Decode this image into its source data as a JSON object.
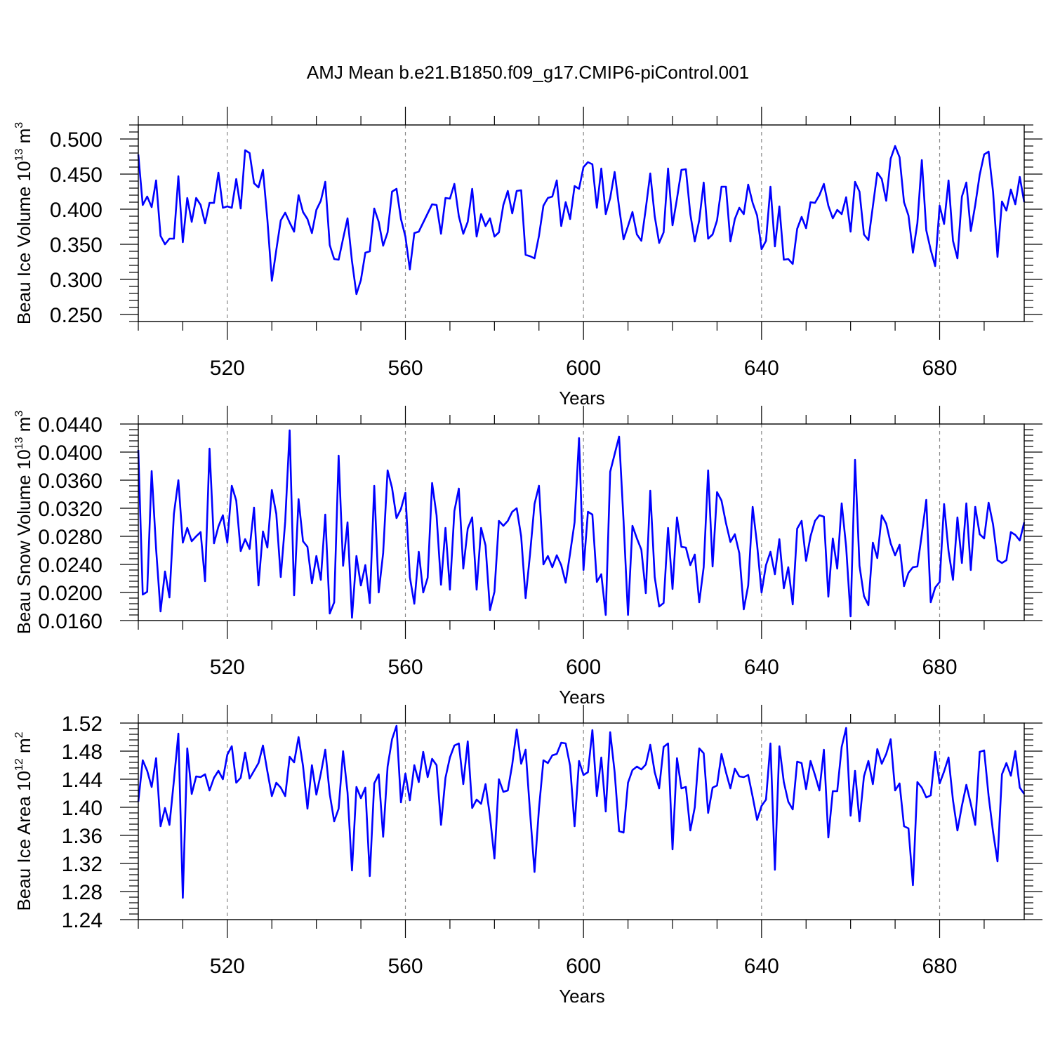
{
  "figure": {
    "title": "AMJ Mean b.e21.B1850.f09_g17.CMIP6-piControl.001"
  },
  "style": {
    "line_color": "#0000ff",
    "axis_color": "#000000",
    "grid_color": "#888888"
  },
  "chart_data": [
    {
      "type": "line",
      "xlabel": "Years",
      "ylabel": "Beau Ice Volume 10",
      "ylabel_exp": "13",
      "ylabel_unit": " m",
      "ylabel_unit_exp": "3",
      "xlim": [
        500,
        699
      ],
      "ylim": [
        0.24,
        0.52
      ],
      "xticks": [
        520,
        560,
        600,
        640,
        680
      ],
      "xtick_labels": [
        "520",
        "560",
        "600",
        "640",
        "680"
      ],
      "yticks": [
        0.25,
        0.3,
        0.35,
        0.4,
        0.45,
        0.5
      ],
      "ytick_labels": [
        "0.250",
        "0.300",
        "0.350",
        "0.400",
        "0.450",
        "0.500"
      ],
      "grid": "vertical dashed at major x ticks",
      "x_start": 500,
      "series": [
        {
          "values": [
            0.478,
            0.406,
            0.418,
            0.403,
            0.441,
            0.362,
            0.35,
            0.358,
            0.358,
            0.447,
            0.353,
            0.416,
            0.382,
            0.416,
            0.406,
            0.38,
            0.409,
            0.409,
            0.452,
            0.402,
            0.404,
            0.402,
            0.443,
            0.401,
            0.484,
            0.48,
            0.437,
            0.431,
            0.456,
            0.385,
            0.298,
            0.342,
            0.384,
            0.395,
            0.381,
            0.368,
            0.42,
            0.396,
            0.386,
            0.366,
            0.399,
            0.412,
            0.439,
            0.349,
            0.329,
            0.328,
            0.358,
            0.387,
            0.326,
            0.279,
            0.299,
            0.338,
            0.34,
            0.401,
            0.382,
            0.348,
            0.367,
            0.425,
            0.429,
            0.386,
            0.361,
            0.314,
            0.366,
            0.368,
            0.381,
            0.394,
            0.407,
            0.406,
            0.365,
            0.416,
            0.415,
            0.436,
            0.39,
            0.365,
            0.382,
            0.429,
            0.361,
            0.393,
            0.376,
            0.387,
            0.361,
            0.367,
            0.406,
            0.426,
            0.394,
            0.426,
            0.427,
            0.335,
            0.333,
            0.33,
            0.362,
            0.405,
            0.416,
            0.418,
            0.441,
            0.376,
            0.41,
            0.386,
            0.433,
            0.429,
            0.46,
            0.467,
            0.464,
            0.402,
            0.458,
            0.393,
            0.416,
            0.453,
            0.403,
            0.357,
            0.376,
            0.396,
            0.364,
            0.355,
            0.401,
            0.451,
            0.39,
            0.352,
            0.367,
            0.458,
            0.377,
            0.415,
            0.456,
            0.457,
            0.393,
            0.354,
            0.384,
            0.438,
            0.358,
            0.364,
            0.384,
            0.432,
            0.432,
            0.354,
            0.386,
            0.402,
            0.393,
            0.435,
            0.409,
            0.391,
            0.343,
            0.355,
            0.432,
            0.347,
            0.404,
            0.328,
            0.329,
            0.322,
            0.372,
            0.389,
            0.373,
            0.41,
            0.409,
            0.42,
            0.436,
            0.405,
            0.387,
            0.399,
            0.393,
            0.417,
            0.368,
            0.439,
            0.425,
            0.364,
            0.356,
            0.404,
            0.452,
            0.443,
            0.412,
            0.472,
            0.49,
            0.474,
            0.41,
            0.391,
            0.338,
            0.38,
            0.47,
            0.37,
            0.342,
            0.319,
            0.405,
            0.379,
            0.441,
            0.355,
            0.33,
            0.418,
            0.438,
            0.369,
            0.406,
            0.449,
            0.478,
            0.482,
            0.425,
            0.332,
            0.411,
            0.398,
            0.428,
            0.407,
            0.446,
            0.41
          ]
        }
      ]
    },
    {
      "type": "line",
      "xlabel": "Years",
      "ylabel": "Beau Snow Volume 10",
      "ylabel_exp": "13",
      "ylabel_unit": " m",
      "ylabel_unit_exp": "3",
      "xlim": [
        500,
        699
      ],
      "ylim": [
        0.016,
        0.044
      ],
      "xticks": [
        520,
        560,
        600,
        640,
        680
      ],
      "xtick_labels": [
        "520",
        "560",
        "600",
        "640",
        "680"
      ],
      "yticks": [
        0.016,
        0.02,
        0.024,
        0.028,
        0.032,
        0.036,
        0.04,
        0.044
      ],
      "ytick_labels": [
        "0.0160",
        "0.0200",
        "0.0240",
        "0.0280",
        "0.0320",
        "0.0360",
        "0.0400",
        "0.0440"
      ],
      "grid": "vertical dashed at major x ticks",
      "x_start": 500,
      "series": [
        {
          "values": [
            0.0403,
            0.0197,
            0.0201,
            0.0373,
            0.0262,
            0.0173,
            0.023,
            0.0193,
            0.0312,
            0.036,
            0.0271,
            0.0292,
            0.0273,
            0.028,
            0.0286,
            0.0216,
            0.0405,
            0.027,
            0.0294,
            0.031,
            0.0271,
            0.0352,
            0.0331,
            0.0259,
            0.0276,
            0.0262,
            0.0321,
            0.021,
            0.0287,
            0.0264,
            0.0346,
            0.0312,
            0.0222,
            0.0301,
            0.0431,
            0.0196,
            0.0333,
            0.0273,
            0.0265,
            0.0213,
            0.0252,
            0.0218,
            0.0311,
            0.017,
            0.0186,
            0.0395,
            0.0238,
            0.03,
            0.0164,
            0.0252,
            0.021,
            0.0239,
            0.0185,
            0.0352,
            0.02,
            0.0256,
            0.0374,
            0.0349,
            0.0306,
            0.0319,
            0.0342,
            0.0222,
            0.0184,
            0.0258,
            0.02,
            0.0221,
            0.0356,
            0.031,
            0.0211,
            0.0292,
            0.0204,
            0.0316,
            0.0348,
            0.0234,
            0.0291,
            0.0307,
            0.0204,
            0.0292,
            0.0267,
            0.0175,
            0.0201,
            0.0302,
            0.0295,
            0.0302,
            0.0315,
            0.032,
            0.028,
            0.0192,
            0.0255,
            0.0326,
            0.0352,
            0.024,
            0.0252,
            0.0236,
            0.0253,
            0.0239,
            0.0214,
            0.0256,
            0.03,
            0.042,
            0.0232,
            0.0315,
            0.0311,
            0.0215,
            0.0226,
            0.0168,
            0.0372,
            0.0397,
            0.0422,
            0.0302,
            0.0168,
            0.0295,
            0.0277,
            0.0261,
            0.0199,
            0.0345,
            0.0222,
            0.018,
            0.0185,
            0.0292,
            0.0205,
            0.0307,
            0.0265,
            0.0264,
            0.0239,
            0.0254,
            0.0186,
            0.0236,
            0.0374,
            0.0237,
            0.0343,
            0.0331,
            0.0299,
            0.0272,
            0.0283,
            0.0256,
            0.0176,
            0.021,
            0.0322,
            0.0268,
            0.02,
            0.0239,
            0.0258,
            0.0226,
            0.0276,
            0.0206,
            0.0236,
            0.0183,
            0.0291,
            0.0302,
            0.0245,
            0.028,
            0.0302,
            0.031,
            0.0308,
            0.0194,
            0.0277,
            0.0234,
            0.0327,
            0.0265,
            0.0166,
            0.0389,
            0.0238,
            0.0195,
            0.0182,
            0.0271,
            0.0249,
            0.031,
            0.0298,
            0.027,
            0.0253,
            0.0268,
            0.0209,
            0.0228,
            0.0236,
            0.0237,
            0.0283,
            0.0332,
            0.0186,
            0.0207,
            0.0215,
            0.0326,
            0.0259,
            0.0218,
            0.0307,
            0.0242,
            0.0327,
            0.0232,
            0.0322,
            0.0283,
            0.0277,
            0.0328,
            0.0297,
            0.0246,
            0.0242,
            0.0246,
            0.0286,
            0.0282,
            0.0274,
            0.03
          ]
        }
      ]
    },
    {
      "type": "line",
      "xlabel": "Years",
      "ylabel": "Beau Ice Area 10",
      "ylabel_exp": "12",
      "ylabel_unit": " m",
      "ylabel_unit_exp": "2",
      "xlim": [
        500,
        699
      ],
      "ylim": [
        1.24,
        1.52
      ],
      "xticks": [
        520,
        560,
        600,
        640,
        680
      ],
      "xtick_labels": [
        "520",
        "560",
        "600",
        "640",
        "680"
      ],
      "yticks": [
        1.24,
        1.28,
        1.32,
        1.36,
        1.4,
        1.44,
        1.48,
        1.52
      ],
      "ytick_labels": [
        "1.24",
        "1.28",
        "1.32",
        "1.36",
        "1.40",
        "1.44",
        "1.48",
        "1.52"
      ],
      "grid": "vertical dashed at major x ticks",
      "x_start": 500,
      "series": [
        {
          "values": [
            1.408,
            1.467,
            1.452,
            1.429,
            1.47,
            1.373,
            1.399,
            1.375,
            1.438,
            1.505,
            1.271,
            1.484,
            1.419,
            1.444,
            1.443,
            1.447,
            1.424,
            1.442,
            1.452,
            1.44,
            1.475,
            1.487,
            1.435,
            1.442,
            1.478,
            1.441,
            1.452,
            1.463,
            1.488,
            1.451,
            1.416,
            1.435,
            1.428,
            1.416,
            1.472,
            1.464,
            1.5,
            1.459,
            1.398,
            1.46,
            1.418,
            1.448,
            1.482,
            1.419,
            1.38,
            1.398,
            1.48,
            1.421,
            1.31,
            1.429,
            1.413,
            1.428,
            1.302,
            1.434,
            1.447,
            1.358,
            1.458,
            1.497,
            1.516,
            1.407,
            1.448,
            1.41,
            1.46,
            1.436,
            1.479,
            1.443,
            1.469,
            1.46,
            1.375,
            1.442,
            1.471,
            1.488,
            1.491,
            1.433,
            1.494,
            1.399,
            1.411,
            1.405,
            1.433,
            1.387,
            1.327,
            1.44,
            1.422,
            1.424,
            1.461,
            1.511,
            1.462,
            1.482,
            1.393,
            1.308,
            1.398,
            1.467,
            1.463,
            1.474,
            1.476,
            1.492,
            1.491,
            1.459,
            1.373,
            1.466,
            1.446,
            1.45,
            1.51,
            1.416,
            1.471,
            1.394,
            1.507,
            1.45,
            1.366,
            1.364,
            1.435,
            1.453,
            1.458,
            1.454,
            1.461,
            1.489,
            1.45,
            1.427,
            1.486,
            1.491,
            1.34,
            1.47,
            1.427,
            1.429,
            1.367,
            1.4,
            1.484,
            1.477,
            1.392,
            1.428,
            1.431,
            1.476,
            1.45,
            1.427,
            1.455,
            1.444,
            1.443,
            1.446,
            1.415,
            1.382,
            1.402,
            1.411,
            1.491,
            1.311,
            1.487,
            1.436,
            1.408,
            1.397,
            1.465,
            1.463,
            1.426,
            1.466,
            1.446,
            1.424,
            1.482,
            1.357,
            1.423,
            1.423,
            1.486,
            1.513,
            1.388,
            1.452,
            1.38,
            1.444,
            1.466,
            1.433,
            1.483,
            1.462,
            1.476,
            1.497,
            1.424,
            1.434,
            1.373,
            1.37,
            1.289,
            1.436,
            1.428,
            1.414,
            1.417,
            1.479,
            1.434,
            1.451,
            1.471,
            1.41,
            1.367,
            1.402,
            1.432,
            1.405,
            1.375,
            1.479,
            1.481,
            1.416,
            1.365,
            1.323,
            1.447,
            1.463,
            1.445,
            1.48,
            1.428,
            1.419
          ]
        }
      ]
    }
  ]
}
